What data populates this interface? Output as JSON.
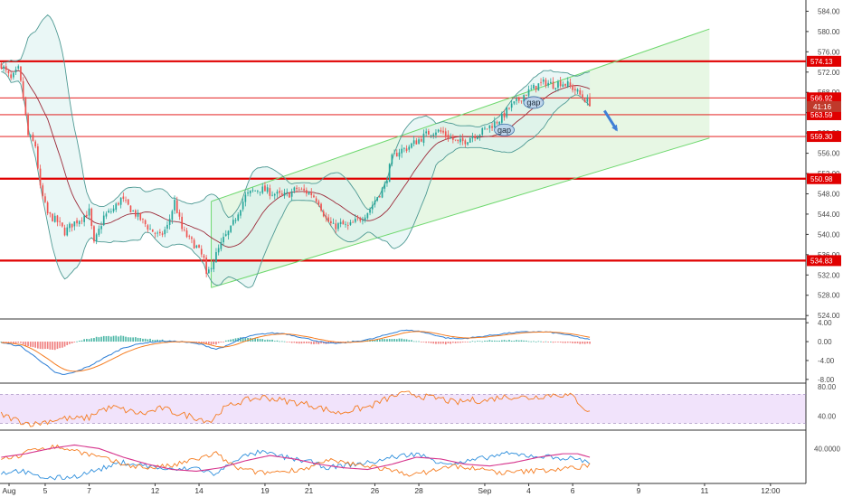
{
  "chart_data": {
    "type": "candlestick",
    "symbol_timeframe": "hourly",
    "colors": {
      "up": "#26a69a",
      "down": "#ef5350",
      "level": "#e00000",
      "channel": "#6fd86f",
      "channel_fill": "#e4f6e1",
      "bb_band": "#4f9a94",
      "bb_fill": "#d9f1ee",
      "bb_mid": "#9c2b3a",
      "arrow": "#3f7fd6",
      "macd": "#2f7fd6",
      "signal": "#f57c20",
      "rsi": "#f57c20",
      "rsi_band": "#f1e3fb",
      "dmi_plus": "#2f8fdc",
      "dmi_minus": "#f57c20",
      "adx": "#d6338c"
    },
    "price_axis": {
      "ticks": [
        "584.00",
        "580.00",
        "576.00",
        "572.00",
        "568.00",
        "564.00",
        "560.00",
        "556.00",
        "552.00",
        "548.00",
        "544.00",
        "540.00",
        "536.00",
        "532.00",
        "528.00",
        "524.00"
      ],
      "range": [
        523.5,
        585.5
      ]
    },
    "x_axis": {
      "labels": [
        "Aug",
        "5",
        "7",
        "12",
        "14",
        "19",
        "21",
        "26",
        "28",
        "Sep",
        "4",
        "6",
        "9",
        "11",
        "12:00"
      ],
      "label_index": [
        0,
        18,
        36,
        63,
        81,
        108,
        126,
        153,
        171,
        198,
        216,
        234,
        261,
        288,
        315
      ],
      "total_slots": 330
    },
    "price_levels": [
      {
        "value": 574.13,
        "label": "574.13",
        "weight": "thick"
      },
      {
        "value": 566.92,
        "label": "566.92",
        "weight": "thin"
      },
      {
        "value": 563.59,
        "label": "563.59",
        "weight": "thin"
      },
      {
        "value": 559.3,
        "label": "559.30",
        "weight": "thin"
      },
      {
        "value": 550.98,
        "label": "550.98",
        "weight": "thick"
      },
      {
        "value": 534.83,
        "label": "534.83",
        "weight": "thick"
      }
    ],
    "last_price_tag": {
      "value": 565.2,
      "label": "41:16"
    },
    "channel": {
      "lower": [
        [
          86,
          529.5
        ],
        [
          290,
          559.0
        ]
      ],
      "upper": [
        [
          86,
          546.5
        ],
        [
          290,
          580.5
        ]
      ]
    },
    "annotations": [
      {
        "text": "gap",
        "x": 218,
        "y": 566.0
      },
      {
        "text": "gap",
        "x": 206,
        "y": 560.6
      }
    ],
    "arrow": {
      "from": [
        247,
        564.4
      ],
      "to": [
        252,
        560.6
      ]
    },
    "anchors": [
      [
        0,
        573.5
      ],
      [
        4,
        570.5
      ],
      [
        7,
        572.5
      ],
      [
        9,
        567.0
      ],
      [
        11,
        559.5
      ],
      [
        14,
        557.5
      ],
      [
        16,
        549.0
      ],
      [
        19,
        544.0
      ],
      [
        23,
        542.5
      ],
      [
        26,
        540.5
      ],
      [
        29,
        542.0
      ],
      [
        32,
        543.0
      ],
      [
        36,
        544.5
      ],
      [
        38,
        538.0
      ],
      [
        42,
        543.5
      ],
      [
        46,
        545.0
      ],
      [
        49,
        547.0
      ],
      [
        53,
        545.0
      ],
      [
        57,
        543.0
      ],
      [
        61,
        541.0
      ],
      [
        65,
        539.5
      ],
      [
        68,
        541.5
      ],
      [
        71,
        546.5
      ],
      [
        74,
        541.0
      ],
      [
        77,
        539.0
      ],
      [
        80,
        537.5
      ],
      [
        83,
        535.0
      ],
      [
        84,
        531.5
      ],
      [
        86,
        534.0
      ],
      [
        88,
        536.0
      ],
      [
        91,
        539.0
      ],
      [
        94,
        541.0
      ],
      [
        97,
        544.5
      ],
      [
        100,
        547.5
      ],
      [
        103,
        548.5
      ],
      [
        106,
        549.0
      ],
      [
        109,
        548.5
      ],
      [
        112,
        548.0
      ],
      [
        115,
        547.5
      ],
      [
        118,
        548.0
      ],
      [
        121,
        549.0
      ],
      [
        124,
        548.5
      ],
      [
        127,
        548.0
      ],
      [
        130,
        546.5
      ],
      [
        133,
        543.0
      ],
      [
        136,
        541.5
      ],
      [
        139,
        542.0
      ],
      [
        142,
        541.5
      ],
      [
        145,
        542.5
      ],
      [
        148,
        543.5
      ],
      [
        151,
        545.0
      ],
      [
        154,
        547.5
      ],
      [
        157,
        549.5
      ],
      [
        160,
        555.0
      ],
      [
        163,
        556.5
      ],
      [
        166,
        557.0
      ],
      [
        169,
        558.0
      ],
      [
        172,
        559.0
      ],
      [
        175,
        560.0
      ],
      [
        178,
        560.5
      ],
      [
        181,
        560.0
      ],
      [
        184,
        559.0
      ],
      [
        187,
        558.0
      ],
      [
        190,
        558.5
      ],
      [
        193,
        559.5
      ],
      [
        196,
        560.0
      ],
      [
        199,
        561.0
      ],
      [
        202,
        562.0
      ],
      [
        205,
        563.0
      ],
      [
        208,
        565.0
      ],
      [
        211,
        566.0
      ],
      [
        214,
        567.5
      ],
      [
        217,
        568.5
      ],
      [
        220,
        569.5
      ],
      [
        223,
        570.0
      ],
      [
        226,
        569.5
      ],
      [
        229,
        570.0
      ],
      [
        232,
        569.5
      ],
      [
        235,
        568.5
      ],
      [
        238,
        567.0
      ],
      [
        241,
        566.0
      ]
    ],
    "macd_axis": {
      "ticks": [
        "4.00",
        "0.00",
        "-4.00",
        "-8.00"
      ],
      "range": [
        -8.6,
        4.6
      ]
    },
    "macd_anchors": [
      [
        0,
        -0.2
      ],
      [
        4,
        -0.6
      ],
      [
        8,
        -1.0
      ],
      [
        12,
        -2.5
      ],
      [
        18,
        -4.8
      ],
      [
        22,
        -6.6
      ],
      [
        26,
        -7.0
      ],
      [
        30,
        -6.5
      ],
      [
        36,
        -5.2
      ],
      [
        42,
        -3.5
      ],
      [
        50,
        -1.3
      ],
      [
        58,
        -0.3
      ],
      [
        66,
        0.1
      ],
      [
        74,
        0.0
      ],
      [
        82,
        -0.6
      ],
      [
        88,
        -1.6
      ],
      [
        93,
        -0.8
      ],
      [
        98,
        0.6
      ],
      [
        104,
        1.4
      ],
      [
        110,
        1.8
      ],
      [
        116,
        1.7
      ],
      [
        122,
        1.0
      ],
      [
        128,
        0.3
      ],
      [
        134,
        -0.4
      ],
      [
        140,
        -0.3
      ],
      [
        146,
        0.1
      ],
      [
        152,
        0.6
      ],
      [
        158,
        1.5
      ],
      [
        164,
        2.4
      ],
      [
        170,
        2.3
      ],
      [
        176,
        1.6
      ],
      [
        182,
        0.8
      ],
      [
        188,
        0.6
      ],
      [
        194,
        0.9
      ],
      [
        200,
        1.3
      ],
      [
        206,
        1.7
      ],
      [
        212,
        2.0
      ],
      [
        218,
        2.1
      ],
      [
        224,
        2.0
      ],
      [
        230,
        1.6
      ],
      [
        236,
        1.0
      ],
      [
        241,
        0.4
      ]
    ],
    "rsi_axis": {
      "ticks": [
        "80.00",
        "40.00"
      ],
      "range": [
        22,
        84
      ],
      "band": [
        30,
        70
      ]
    },
    "rsi_anchors": [
      [
        0,
        42
      ],
      [
        6,
        35
      ],
      [
        10,
        31
      ],
      [
        14,
        29
      ],
      [
        20,
        34
      ],
      [
        26,
        37
      ],
      [
        30,
        36
      ],
      [
        36,
        38
      ],
      [
        40,
        48
      ],
      [
        46,
        52
      ],
      [
        52,
        47
      ],
      [
        58,
        43
      ],
      [
        62,
        47
      ],
      [
        66,
        51
      ],
      [
        70,
        46
      ],
      [
        74,
        42
      ],
      [
        78,
        40
      ],
      [
        82,
        36
      ],
      [
        86,
        33
      ],
      [
        90,
        48
      ],
      [
        96,
        58
      ],
      [
        102,
        63
      ],
      [
        108,
        66
      ],
      [
        114,
        62
      ],
      [
        120,
        59
      ],
      [
        126,
        56
      ],
      [
        132,
        50
      ],
      [
        138,
        44
      ],
      [
        144,
        49
      ],
      [
        150,
        52
      ],
      [
        156,
        61
      ],
      [
        162,
        69
      ],
      [
        168,
        71
      ],
      [
        174,
        66
      ],
      [
        180,
        64
      ],
      [
        186,
        58
      ],
      [
        192,
        62
      ],
      [
        198,
        61
      ],
      [
        204,
        66
      ],
      [
        210,
        67
      ],
      [
        216,
        65
      ],
      [
        222,
        68
      ],
      [
        228,
        70
      ],
      [
        234,
        67
      ],
      [
        238,
        54
      ],
      [
        241,
        44
      ]
    ],
    "dmi_axis": {
      "ticks": [
        "40.0000"
      ],
      "range": [
        0,
        60
      ]
    },
    "dmi_plus_anchors": [
      [
        0,
        12
      ],
      [
        8,
        15
      ],
      [
        14,
        8
      ],
      [
        22,
        6
      ],
      [
        30,
        8
      ],
      [
        40,
        16
      ],
      [
        50,
        24
      ],
      [
        60,
        20
      ],
      [
        70,
        15
      ],
      [
        80,
        18
      ],
      [
        88,
        10
      ],
      [
        96,
        28
      ],
      [
        106,
        36
      ],
      [
        116,
        30
      ],
      [
        126,
        25
      ],
      [
        134,
        18
      ],
      [
        144,
        22
      ],
      [
        152,
        24
      ],
      [
        160,
        30
      ],
      [
        170,
        34
      ],
      [
        178,
        26
      ],
      [
        186,
        22
      ],
      [
        196,
        28
      ],
      [
        206,
        34
      ],
      [
        216,
        32
      ],
      [
        226,
        30
      ],
      [
        236,
        28
      ],
      [
        241,
        24
      ]
    ],
    "dmi_minus_anchors": [
      [
        0,
        28
      ],
      [
        8,
        32
      ],
      [
        14,
        40
      ],
      [
        22,
        42
      ],
      [
        30,
        38
      ],
      [
        40,
        30
      ],
      [
        50,
        22
      ],
      [
        60,
        18
      ],
      [
        70,
        20
      ],
      [
        80,
        28
      ],
      [
        88,
        34
      ],
      [
        96,
        18
      ],
      [
        106,
        12
      ],
      [
        116,
        14
      ],
      [
        126,
        18
      ],
      [
        134,
        26
      ],
      [
        144,
        22
      ],
      [
        152,
        20
      ],
      [
        160,
        14
      ],
      [
        170,
        10
      ],
      [
        178,
        16
      ],
      [
        186,
        20
      ],
      [
        196,
        16
      ],
      [
        206,
        12
      ],
      [
        216,
        14
      ],
      [
        226,
        16
      ],
      [
        236,
        18
      ],
      [
        241,
        22
      ]
    ],
    "adx_anchors": [
      [
        0,
        30
      ],
      [
        10,
        34
      ],
      [
        20,
        40
      ],
      [
        30,
        44
      ],
      [
        40,
        40
      ],
      [
        50,
        30
      ],
      [
        60,
        22
      ],
      [
        70,
        16
      ],
      [
        80,
        14
      ],
      [
        90,
        18
      ],
      [
        100,
        26
      ],
      [
        110,
        32
      ],
      [
        120,
        28
      ],
      [
        130,
        22
      ],
      [
        140,
        18
      ],
      [
        150,
        16
      ],
      [
        160,
        22
      ],
      [
        170,
        30
      ],
      [
        180,
        28
      ],
      [
        190,
        22
      ],
      [
        200,
        20
      ],
      [
        210,
        24
      ],
      [
        220,
        30
      ],
      [
        230,
        34
      ],
      [
        236,
        34
      ],
      [
        241,
        30
      ]
    ]
  }
}
